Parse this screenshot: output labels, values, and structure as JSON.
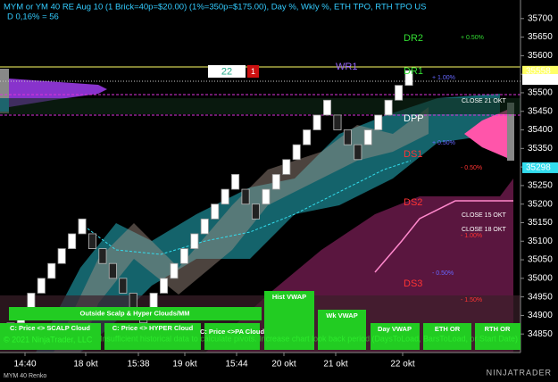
{
  "header": {
    "title": "MYM or YM 40 RE Aug 10 (1 Brick=40p=$20.00) (1%=350p=$175.00), Day %, Wkly %, ETH TPO, RTH TPO US",
    "subtitle": "D 0,16% = 56"
  },
  "chart_data": {
    "type": "renko",
    "brick_size": 40,
    "values": [
      34840,
      34880,
      34920,
      34960,
      35000,
      35040,
      35080,
      35120,
      35080,
      35040,
      35000,
      34960,
      34920,
      34880,
      34920,
      34960,
      35000,
      35040,
      35080,
      35120,
      35160,
      35200,
      35240,
      35200,
      35160,
      35200,
      35240,
      35280,
      35320,
      35360,
      35400,
      35440,
      35400,
      35360,
      35320,
      35360,
      35400,
      35440,
      35480,
      35520
    ],
    "up_color": "#ffffff",
    "down_color": "#222222",
    "ylim": [
      34800,
      35750
    ],
    "yticks": [
      34850,
      34900,
      34950,
      35000,
      35050,
      35100,
      35150,
      35200,
      35250,
      35300,
      35350,
      35400,
      35450,
      35500,
      35550,
      35600,
      35650,
      35700
    ],
    "x_labels": [
      "14:40",
      "18 okt",
      "15:38",
      "19 okt",
      "15:44",
      "20 okt",
      "21 okt",
      "22 okt"
    ],
    "price_labels": [
      {
        "value": 35558,
        "color": "#ffff66"
      },
      {
        "value": 35536,
        "color": "#ffffff"
      },
      {
        "value": 35298,
        "color": "#33ddee"
      }
    ]
  },
  "levels": [
    "DR2",
    "DR1",
    "WR1",
    "DPP",
    "DS1",
    "DS2",
    "DS3"
  ],
  "percent_labels": [
    "+ 0.50%",
    "+ 1.00%",
    "+ 0.50%",
    "- 0.50%",
    "- 1.00%",
    "- 0.50%",
    "- 1.50%"
  ],
  "close_labels": [
    "CLOSE 21 OKT",
    "CLOSE 15 OKT",
    "CLOSE 18 OKT"
  ],
  "counter": {
    "count": 22,
    "flag": 1
  },
  "buttons": [
    "Outside Scalp & Hyper Clouds/MM",
    "C: Price <> SCALP Cloud",
    "C: Price <> HYPER Cloud",
    "C: Price <>PA Cloud",
    "Hist VWAP",
    "Wk VWAP",
    "Day VWAP",
    "ETH OR",
    "RTH OR"
  ],
  "footer": {
    "copyright": "© 2021 NinjaTrader, LLC",
    "warning": "Insufficient historical data to calculate pivots. Increase chart look back period (DaysToLoad, BarsToLoad, or Start Date)",
    "instrument": "MYM 40 Renko",
    "logo": "NINJATRADER"
  }
}
